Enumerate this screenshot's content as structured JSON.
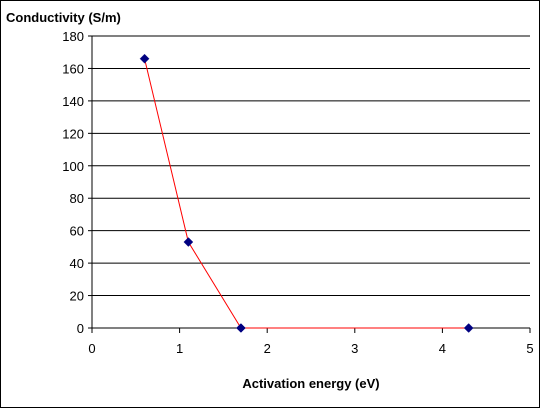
{
  "chart_data": {
    "type": "line",
    "ylabel": "Conductivity (S/m)",
    "xlabel": "Activation energy (eV)",
    "xlim": [
      0,
      5
    ],
    "ylim": [
      0,
      180
    ],
    "xticks": [
      "0",
      "1",
      "2",
      "3",
      "4",
      "5"
    ],
    "yticks": [
      "0",
      "20",
      "40",
      "60",
      "80",
      "100",
      "120",
      "140",
      "160",
      "180"
    ],
    "grid": "horizontal",
    "legend": "none",
    "series": [
      {
        "x": [
          0.6,
          1.1,
          1.7,
          4.3
        ],
        "y": [
          166,
          53,
          0,
          0
        ],
        "line_color": "#ff0000",
        "marker_color": "#000080",
        "marker": "diamond"
      }
    ]
  }
}
